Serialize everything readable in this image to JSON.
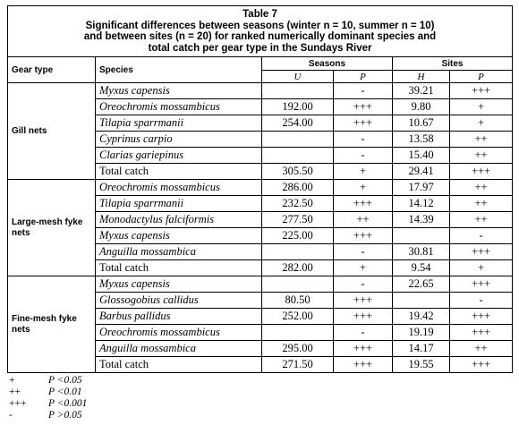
{
  "table": {
    "caption_lines": [
      "Table 7",
      "Significant differences between seasons (winter n = 10, summer n = 10)",
      "and between sites (n = 20) for ranked numerically dominant species and",
      "total catch per gear type in the Sundays River"
    ],
    "headers": {
      "gear_type": "Gear type",
      "species": "Species",
      "seasons": "Seasons",
      "sites": "Sites",
      "u": "U",
      "p": "P",
      "h": "H",
      "p2": "P"
    },
    "groups": [
      {
        "gear": "Gill nets",
        "rows": [
          {
            "species": "Myxus capensis",
            "u": "",
            "p_season": "-",
            "h": "39.21",
            "p_site": "+++"
          },
          {
            "species": "Oreochromis mossambicus",
            "u": "192.00",
            "p_season": "+++",
            "h": "9.80",
            "p_site": "+"
          },
          {
            "species": "Tilapia sparrmanii",
            "u": "254.00",
            "p_season": "+++",
            "h": "10.67",
            "p_site": "+"
          },
          {
            "species": "Cyprinus carpio",
            "u": "",
            "p_season": "-",
            "h": "13.58",
            "p_site": "++"
          },
          {
            "species": "Clarias gariepinus",
            "u": "",
            "p_season": "-",
            "h": "15.40",
            "p_site": "++"
          },
          {
            "species": "Total catch",
            "u": "305.50",
            "p_season": "+",
            "h": "29.41",
            "p_site": "+++"
          }
        ]
      },
      {
        "gear": "Large-mesh fyke nets",
        "rows": [
          {
            "species": "Oreochromis mossambicus",
            "u": "286.00",
            "p_season": "+",
            "h": "17.97",
            "p_site": "++"
          },
          {
            "species": "Tilapia sparrmanii",
            "u": "232.50",
            "p_season": "+++",
            "h": "14.12",
            "p_site": "++"
          },
          {
            "species": "Monodactylus falciformis",
            "u": "277.50",
            "p_season": "++",
            "h": "14.39",
            "p_site": "++"
          },
          {
            "species": "Myxus capensis",
            "u": "225.00",
            "p_season": "+++",
            "h": "",
            "p_site": "-"
          },
          {
            "species": "Anguilla mossambica",
            "u": "",
            "p_season": "-",
            "h": "30.81",
            "p_site": "+++"
          },
          {
            "species": "Total catch",
            "u": "282.00",
            "p_season": "+",
            "h": "9.54",
            "p_site": "+"
          }
        ]
      },
      {
        "gear": "Fine-mesh fyke nets",
        "rows": [
          {
            "species": "Myxus capensis",
            "u": "",
            "p_season": "-",
            "h": "22.65",
            "p_site": "+++"
          },
          {
            "species": "Glossogobius callidus",
            "u": "80.50",
            "p_season": "+++",
            "h": "",
            "p_site": "-"
          },
          {
            "species": "Barbus pallidus",
            "u": "252.00",
            "p_season": "+++",
            "h": "19.42",
            "p_site": "+++"
          },
          {
            "species": "Oreochromis mossambicus",
            "u": "",
            "p_season": "-",
            "h": "19.19",
            "p_site": "+++"
          },
          {
            "species": "Anguilla mossambica",
            "u": "295.00",
            "p_season": "+++",
            "h": "14.17",
            "p_site": "++"
          },
          {
            "species": "Total catch",
            "u": "271.50",
            "p_season": "+++",
            "h": "19.55",
            "p_site": "+++"
          }
        ]
      }
    ]
  },
  "legend": [
    {
      "symbol": "+",
      "meaning": "P <0.05"
    },
    {
      "symbol": "++",
      "meaning": "P <0.01"
    },
    {
      "symbol": "+++",
      "meaning": "P <0.001"
    },
    {
      "symbol": "-",
      "meaning": "P >0.05"
    }
  ]
}
